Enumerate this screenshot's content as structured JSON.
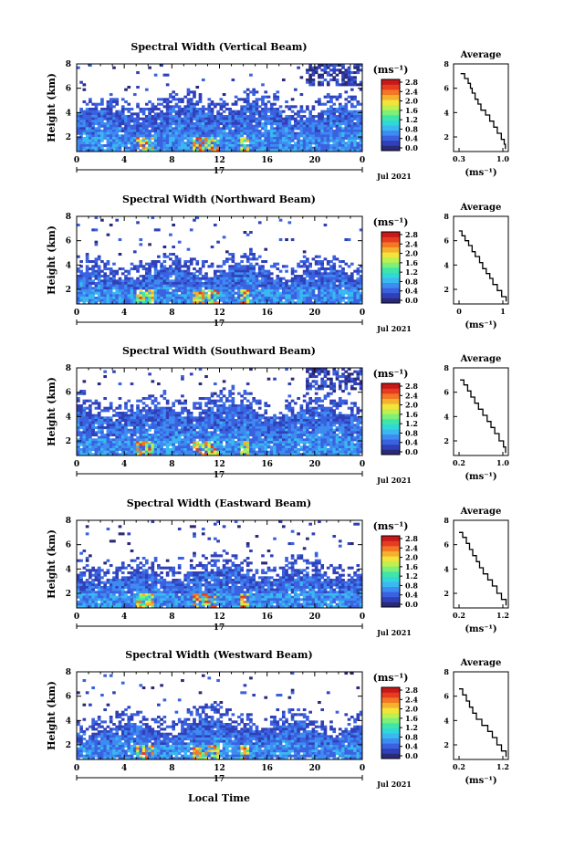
{
  "colors": {
    "scale": [
      "#2a2a7a",
      "#3040b8",
      "#3a62e0",
      "#3e8cf2",
      "#3ab8f0",
      "#32d8d8",
      "#3ee6a8",
      "#7cf07a",
      "#bef052",
      "#f2e43a",
      "#f6b02e",
      "#f27824",
      "#e83c20",
      "#c81818"
    ],
    "axis": "#000000"
  },
  "panels": [
    {
      "title": "Spectral Width (Vertical Beam)",
      "lowHeight": 4.0,
      "upper": "right"
    },
    {
      "title": "Spectral Width (Northward Beam)",
      "lowHeight": 3.2,
      "upper": "sparse"
    },
    {
      "title": "Spectral Width (Southward Beam)",
      "lowHeight": 4.3,
      "upper": "right"
    },
    {
      "title": "Spectral Width (Eastward Beam)",
      "lowHeight": 3.4,
      "upper": "sparse"
    },
    {
      "title": "Spectral Width (Westward Beam)",
      "lowHeight": 3.3,
      "upper": "sparse"
    }
  ],
  "main_axes": {
    "ylabel": "Height (km)",
    "yticks": [
      "2",
      "4",
      "6",
      "8"
    ],
    "xticks": [
      "0",
      "4",
      "8",
      "12",
      "16",
      "20",
      "0"
    ],
    "day_label": "17",
    "date_label": "Jul 2021",
    "xlabel_bottom": "Local Time"
  },
  "colorbar": {
    "unit": "(ms⁻¹)",
    "ticks": [
      "0.0",
      "0.4",
      "0.8",
      "1.2",
      "1.6",
      "2.0",
      "2.4",
      "2.8"
    ]
  },
  "average_panel": {
    "title": "Average",
    "yticks": [
      "2",
      "4",
      "6",
      "8"
    ],
    "xlabel": "(ms⁻¹)",
    "xtick_sets": [
      [
        "0.3",
        "1.0"
      ],
      [
        "0",
        "1"
      ],
      [
        "0.2",
        "1.0"
      ],
      [
        "0.2",
        "1.2"
      ],
      [
        "0.2",
        "1.2"
      ]
    ]
  },
  "chart_data": [
    {
      "type": "heatmap",
      "title": "Spectral Width (Vertical Beam)",
      "ylabel": "Height (km)",
      "xlabel": "",
      "xticks": [
        "0",
        "4",
        "8",
        "12",
        "16",
        "20",
        "0"
      ],
      "yticks": [
        "2",
        "4",
        "6",
        "8"
      ],
      "ylim": [
        0.8,
        8
      ],
      "xlim_hours": [
        0,
        24
      ],
      "colorbar_range": [
        0,
        2.8
      ],
      "colorbar_unit": "ms^-1"
    },
    {
      "type": "line",
      "title": "Average",
      "x_unit": "ms^-1",
      "xticks": [
        "0.3",
        "1.0"
      ],
      "ylim": [
        0.8,
        8
      ],
      "x": [
        1.02,
        1.0,
        0.95,
        0.88,
        0.82,
        0.75,
        0.68,
        0.6,
        0.55,
        0.5,
        0.45,
        0.42,
        0.38,
        0.32,
        0.25
      ],
      "y": [
        1.0,
        1.4,
        1.8,
        2.3,
        2.8,
        3.3,
        3.8,
        4.2,
        4.7,
        5.1,
        5.6,
        6.0,
        6.4,
        6.8,
        7.2
      ]
    },
    {
      "type": "heatmap",
      "title": "Spectral Width (Northward Beam)",
      "ylabel": "Height (km)",
      "xticks": [
        "0",
        "4",
        "8",
        "12",
        "16",
        "20",
        "0"
      ],
      "yticks": [
        "2",
        "4",
        "6",
        "8"
      ],
      "ylim": [
        0.8,
        8
      ],
      "colorbar_range": [
        0,
        2.8
      ]
    },
    {
      "type": "line",
      "title": "Average",
      "x_unit": "ms^-1",
      "xticks": [
        "0",
        "1"
      ],
      "ylim": [
        0.8,
        8
      ],
      "x": [
        1.15,
        1.05,
        0.95,
        0.85,
        0.78,
        0.7,
        0.62,
        0.55,
        0.45,
        0.38,
        0.3,
        0.22,
        0.15,
        0.08
      ],
      "y": [
        1.0,
        1.4,
        1.9,
        2.4,
        2.9,
        3.3,
        3.7,
        4.2,
        4.7,
        5.1,
        5.6,
        6.0,
        6.4,
        6.8
      ]
    },
    {
      "type": "heatmap",
      "title": "Spectral Width (Southward Beam)",
      "ylabel": "Height (km)",
      "xticks": [
        "0",
        "4",
        "8",
        "12",
        "16",
        "20",
        "0"
      ],
      "yticks": [
        "2",
        "4",
        "6",
        "8"
      ],
      "ylim": [
        0.8,
        8
      ],
      "colorbar_range": [
        0,
        2.8
      ]
    },
    {
      "type": "line",
      "title": "Average",
      "x_unit": "ms^-1",
      "xticks": [
        "0.2",
        "1.0"
      ],
      "ylim": [
        0.8,
        8
      ],
      "x": [
        1.02,
        0.98,
        0.9,
        0.82,
        0.75,
        0.68,
        0.6,
        0.52,
        0.45,
        0.38,
        0.32,
        0.25,
        0.18
      ],
      "y": [
        1.0,
        1.5,
        2.0,
        2.6,
        3.1,
        3.6,
        4.1,
        4.6,
        5.1,
        5.6,
        6.1,
        6.6,
        7.0
      ]
    },
    {
      "type": "heatmap",
      "title": "Spectral Width (Eastward Beam)",
      "ylabel": "Height (km)",
      "xticks": [
        "0",
        "4",
        "8",
        "12",
        "16",
        "20",
        "0"
      ],
      "yticks": [
        "2",
        "4",
        "6",
        "8"
      ],
      "ylim": [
        0.8,
        8
      ],
      "colorbar_range": [
        0,
        2.8
      ]
    },
    {
      "type": "line",
      "title": "Average",
      "x_unit": "ms^-1",
      "xticks": [
        "0.2",
        "1.2"
      ],
      "ylim": [
        0.8,
        8
      ],
      "x": [
        1.15,
        1.05,
        0.95,
        0.85,
        0.75,
        0.65,
        0.57,
        0.5,
        0.42,
        0.35,
        0.28,
        0.2,
        0.12
      ],
      "y": [
        1.0,
        1.5,
        2.0,
        2.6,
        3.1,
        3.6,
        4.1,
        4.6,
        5.1,
        5.6,
        6.1,
        6.6,
        7.0
      ]
    },
    {
      "type": "heatmap",
      "title": "Spectral Width (Westward Beam)",
      "ylabel": "Height (km)",
      "xticks": [
        "0",
        "4",
        "8",
        "12",
        "16",
        "20",
        "0"
      ],
      "yticks": [
        "2",
        "4",
        "6",
        "8"
      ],
      "ylim": [
        0.8,
        8
      ],
      "colorbar_range": [
        0,
        2.8
      ],
      "xlabel": "Local Time"
    },
    {
      "type": "line",
      "title": "Average",
      "x_unit": "ms^-1",
      "xticks": [
        "0.2",
        "1.2"
      ],
      "ylim": [
        0.8,
        8
      ],
      "x": [
        1.15,
        1.05,
        0.95,
        0.85,
        0.75,
        0.62,
        0.5,
        0.42,
        0.35,
        0.28,
        0.2,
        0.12
      ],
      "y": [
        1.0,
        1.5,
        2.0,
        2.6,
        3.1,
        3.6,
        4.1,
        4.6,
        5.1,
        5.6,
        6.1,
        6.6
      ]
    }
  ]
}
